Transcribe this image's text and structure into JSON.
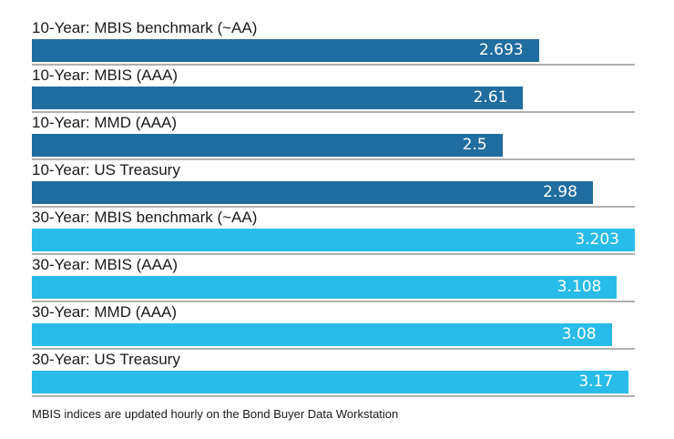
{
  "chart_data": {
    "type": "bar",
    "orientation": "horizontal",
    "title": "",
    "xlabel": "",
    "ylabel": "",
    "xlim": [
      0,
      3.203
    ],
    "grid": false,
    "legend": false,
    "value_labels_position": "inside-end",
    "categories": [
      "10-Year: MBIS benchmark (~AA)",
      "10-Year: MBIS (AAA)",
      "10-Year: MMD (AAA)",
      "10-Year: US Treasury",
      "30-Year: MBIS benchmark (~AA)",
      "30-Year: MBIS (AAA)",
      "30-Year: MMD (AAA)",
      "30-Year: US Treasury"
    ],
    "values": [
      2.693,
      2.61,
      2.5,
      2.98,
      3.203,
      3.108,
      3.08,
      3.17
    ],
    "bars": [
      {
        "label": "10-Year: MBIS benchmark (~AA)",
        "value": 2.693,
        "display": "2.693",
        "group": "10-year"
      },
      {
        "label": "10-Year: MBIS (AAA)",
        "value": 2.61,
        "display": "2.61",
        "group": "10-year"
      },
      {
        "label": "10-Year: MMD (AAA)",
        "value": 2.5,
        "display": "2.5",
        "group": "10-year"
      },
      {
        "label": "10-Year: US Treasury",
        "value": 2.98,
        "display": "2.98",
        "group": "10-year"
      },
      {
        "label": "30-Year: MBIS benchmark (~AA)",
        "value": 3.203,
        "display": "3.203",
        "group": "30-year"
      },
      {
        "label": "30-Year: MBIS (AAA)",
        "value": 3.108,
        "display": "3.108",
        "group": "30-year"
      },
      {
        "label": "30-Year: MMD (AAA)",
        "value": 3.08,
        "display": "3.08",
        "group": "30-year"
      },
      {
        "label": "30-Year: US Treasury",
        "value": 3.17,
        "display": "3.17",
        "group": "30-year"
      }
    ],
    "colors": {
      "ten_year": "#206d9f",
      "thirty_year": "#29bce8",
      "separator": "#b0b0b0",
      "value_text": "#ffffff",
      "label_text": "#1a1a1a"
    },
    "footnote": "MBIS indices are updated hourly on the Bond Buyer Data Workstation"
  }
}
